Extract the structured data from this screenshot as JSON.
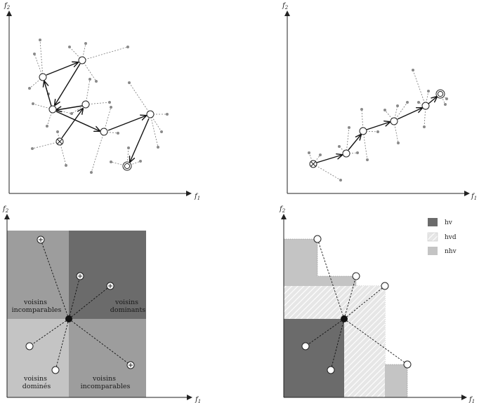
{
  "panels": {
    "top_left": {
      "x_axis": "f",
      "x_sub": "1",
      "y_axis": "f",
      "y_sub": "2"
    },
    "top_right": {
      "x_axis": "f",
      "x_sub": "1",
      "y_axis": "f",
      "y_sub": "2"
    },
    "bottom_left": {
      "x_axis": "f",
      "x_sub": "1",
      "y_axis": "f",
      "y_sub": "2",
      "regions": {
        "top_left": [
          "voisins",
          "incomparables"
        ],
        "top_right": [
          "voisins",
          "dominants"
        ],
        "bottom_left": [
          "voisins",
          "dominés"
        ],
        "bottom_right": [
          "voisins",
          "incomparables"
        ]
      }
    },
    "bottom_right": {
      "x_axis": "f",
      "x_sub": "1",
      "y_axis": "f",
      "y_sub": "2",
      "legend": [
        {
          "label": "hv",
          "pattern": "dark"
        },
        {
          "label": "hvd",
          "pattern": "hatch"
        },
        {
          "label": "nhv",
          "pattern": "light"
        }
      ]
    }
  },
  "colors": {
    "dark": "#6b6b6b",
    "mid": "#9d9d9d",
    "light": "#c4c4c4",
    "line": "#222222",
    "dot": "#8a8a8a"
  }
}
